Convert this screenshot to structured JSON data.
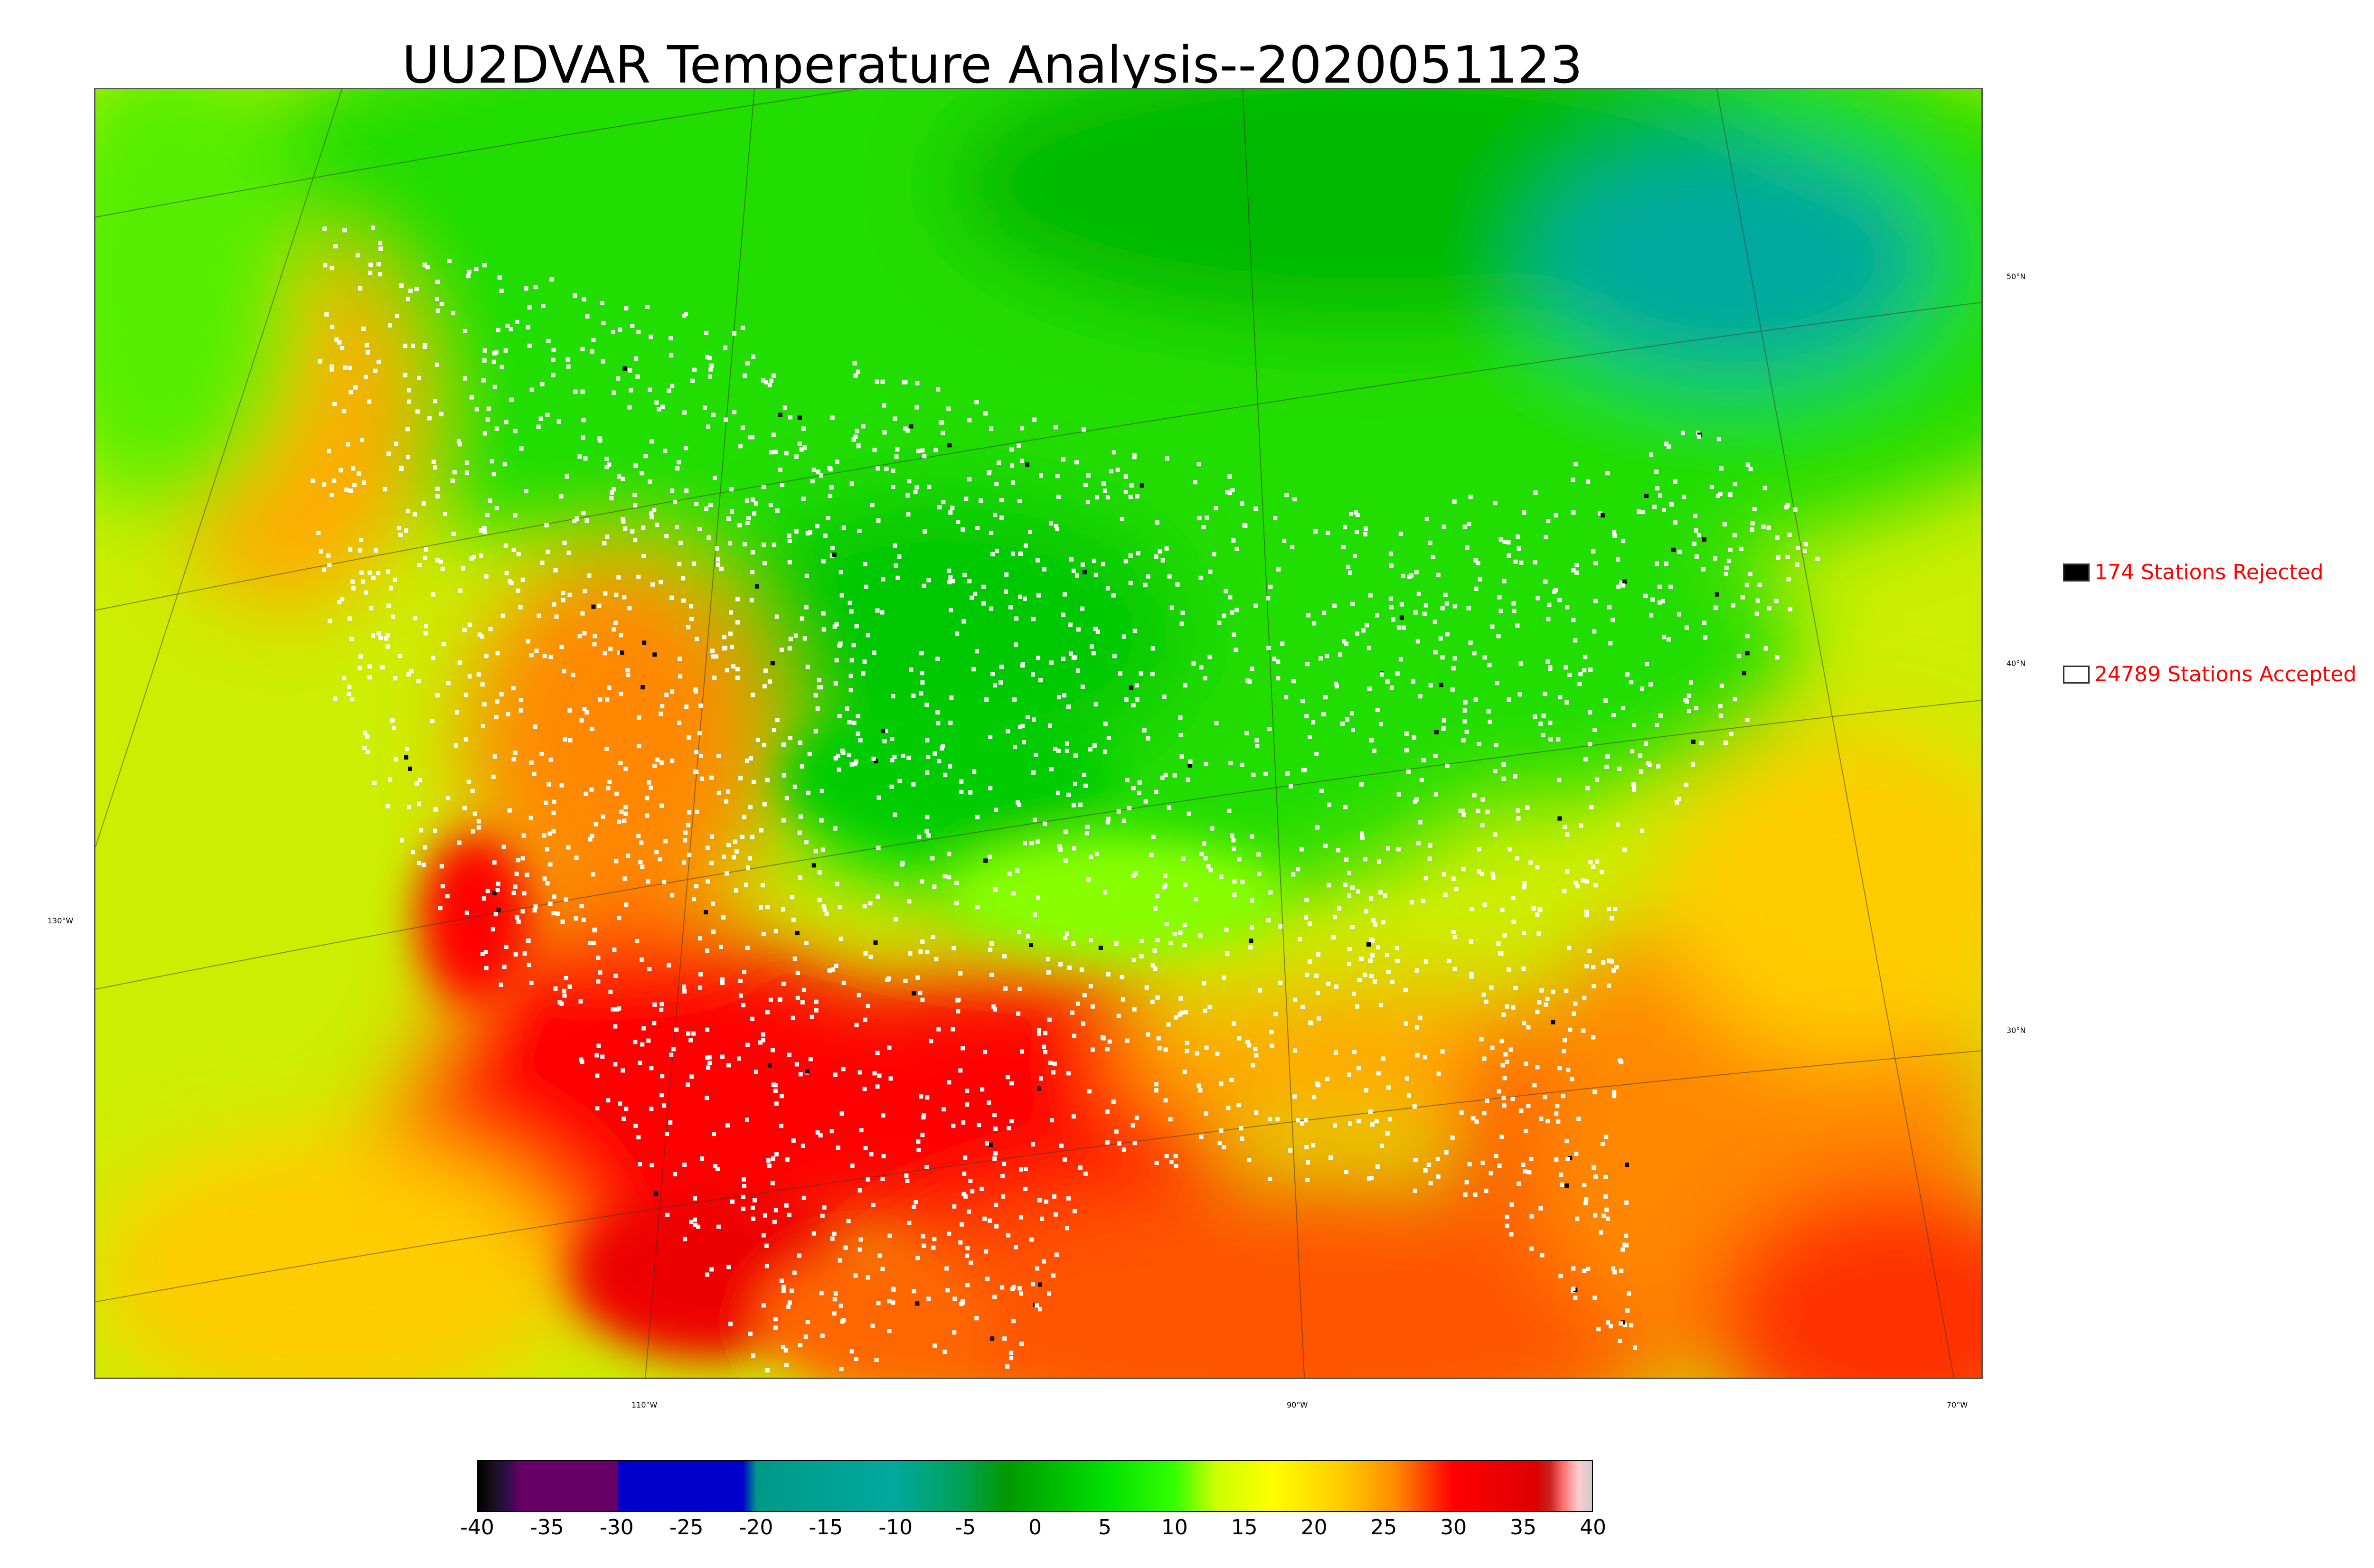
{
  "title": "UU2DVAR Temperature Analysis--2020051123",
  "map": {
    "lat_labels": [
      "50°N",
      "40°N",
      "30°N"
    ],
    "lon_labels": [
      "130°W",
      "110°W",
      "90°W",
      "70°W"
    ]
  },
  "legend": {
    "rejected": {
      "text": "174 Stations Rejected",
      "color": "#000000"
    },
    "accepted": {
      "text": "24789 Stations Accepted",
      "color": "#ffffff"
    },
    "text_color": "#ff0000"
  },
  "colorbar": {
    "ticks": [
      "-40",
      "-35",
      "-30",
      "-25",
      "-20",
      "-15",
      "-10",
      "-5",
      "0",
      "5",
      "10",
      "15",
      "20",
      "25",
      "30",
      "35",
      "40"
    ],
    "stops": [
      {
        "value": -40,
        "color": "#000000"
      },
      {
        "value": -39,
        "color": "#1a0f1a"
      },
      {
        "value": -38,
        "color": "#2a0f45"
      },
      {
        "value": -37,
        "color": "#660066"
      },
      {
        "value": -30,
        "color": "#660066"
      },
      {
        "value": -29.9,
        "color": "#0000cc"
      },
      {
        "value": -21,
        "color": "#0000cc"
      },
      {
        "value": -20,
        "color": "#009988"
      },
      {
        "value": -10,
        "color": "#00a99e"
      },
      {
        "value": -5,
        "color": "#00a050"
      },
      {
        "value": -2,
        "color": "#009900"
      },
      {
        "value": 5,
        "color": "#00e000"
      },
      {
        "value": 10,
        "color": "#33ff00"
      },
      {
        "value": 13,
        "color": "#ccff00"
      },
      {
        "value": 17,
        "color": "#ffff00"
      },
      {
        "value": 22,
        "color": "#ffcc00"
      },
      {
        "value": 26,
        "color": "#ff8800"
      },
      {
        "value": 30,
        "color": "#ff0000"
      },
      {
        "value": 36,
        "color": "#dd0000"
      },
      {
        "value": 37,
        "color": "#cc2222"
      },
      {
        "value": 38,
        "color": "#ff7777"
      },
      {
        "value": 39,
        "color": "#ffcccc"
      },
      {
        "value": 40,
        "color": "#cccccc"
      }
    ]
  }
}
